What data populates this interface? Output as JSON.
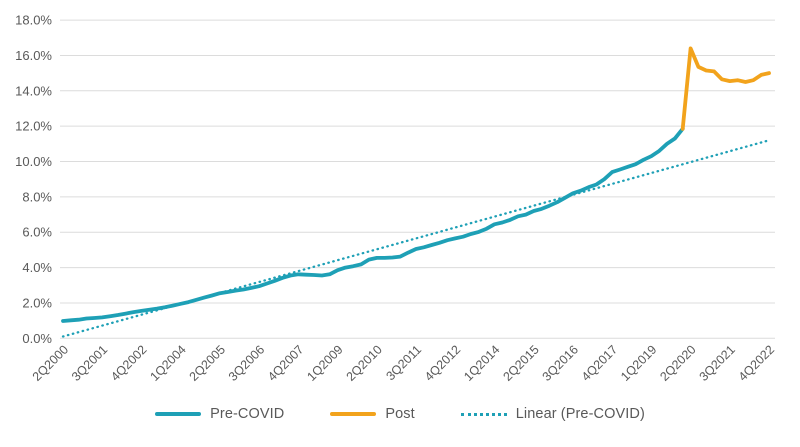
{
  "chart_data": {
    "type": "line",
    "title": "",
    "xlabel": "",
    "ylabel": "",
    "y_range": [
      0,
      18
    ],
    "y_tick_values": [
      0,
      2,
      4,
      6,
      8,
      10,
      12,
      14,
      16,
      18
    ],
    "y_tick_labels": [
      "0.0%",
      "2.0%",
      "4.0%",
      "6.0%",
      "8.0%",
      "10.0%",
      "12.0%",
      "14.0%",
      "16.0%",
      "18.0%"
    ],
    "n_points": 91,
    "x_tick_indices": [
      0,
      5,
      10,
      15,
      20,
      25,
      30,
      35,
      40,
      45,
      50,
      55,
      60,
      65,
      70,
      75,
      80,
      85,
      90
    ],
    "x_tick_labels": [
      "2Q2000",
      "3Q2001",
      "4Q2002",
      "1Q2004",
      "2Q2005",
      "3Q2006",
      "4Q2007",
      "1Q2009",
      "2Q2010",
      "3Q2011",
      "4Q2012",
      "1Q2014",
      "2Q2015",
      "3Q2016",
      "4Q2017",
      "1Q2019",
      "2Q2020",
      "3Q2021",
      "4Q2022"
    ],
    "grid": "horizontal",
    "legend_position": "bottom",
    "series": [
      {
        "name": "Pre-COVID",
        "color": "#1EA0B6",
        "style": "solid",
        "start_index": 0,
        "values": [
          0.98,
          1.02,
          1.05,
          1.12,
          1.15,
          1.18,
          1.25,
          1.32,
          1.4,
          1.48,
          1.55,
          1.62,
          1.68,
          1.76,
          1.85,
          1.95,
          2.05,
          2.18,
          2.3,
          2.42,
          2.55,
          2.62,
          2.7,
          2.76,
          2.85,
          2.95,
          3.1,
          3.25,
          3.42,
          3.55,
          3.62,
          3.6,
          3.58,
          3.55,
          3.62,
          3.85,
          4.0,
          4.08,
          4.18,
          4.45,
          4.55,
          4.55,
          4.57,
          4.62,
          4.85,
          5.05,
          5.15,
          5.28,
          5.4,
          5.55,
          5.65,
          5.75,
          5.9,
          6.02,
          6.2,
          6.45,
          6.55,
          6.7,
          6.9,
          7.0,
          7.2,
          7.32,
          7.5,
          7.7,
          7.95,
          8.2,
          8.35,
          8.55,
          8.7,
          9.0,
          9.4,
          9.55,
          9.7,
          9.85,
          10.1,
          10.3,
          10.6,
          11.0,
          11.3,
          11.85
        ]
      },
      {
        "name": "Post",
        "color": "#F2A31C",
        "style": "solid",
        "start_index": 79,
        "values": [
          11.85,
          16.4,
          15.35,
          15.15,
          15.1,
          14.65,
          14.55,
          14.6,
          14.5,
          14.6,
          14.9,
          15.0
        ]
      },
      {
        "name": "Linear (Pre-COVID)",
        "color": "#1EA0B6",
        "style": "dotted",
        "trend": {
          "start": 0.1,
          "end": 11.2
        }
      }
    ]
  },
  "legend": {
    "items": [
      {
        "label": "Pre-COVID"
      },
      {
        "label": "Post"
      },
      {
        "label": "Linear (Pre-COVID)"
      }
    ]
  },
  "colors": {
    "pre_covid": "#1EA0B6",
    "post": "#F2A31C",
    "grid": "#DCDCDC",
    "axis_text": "#595959",
    "background": "#FFFFFF"
  }
}
